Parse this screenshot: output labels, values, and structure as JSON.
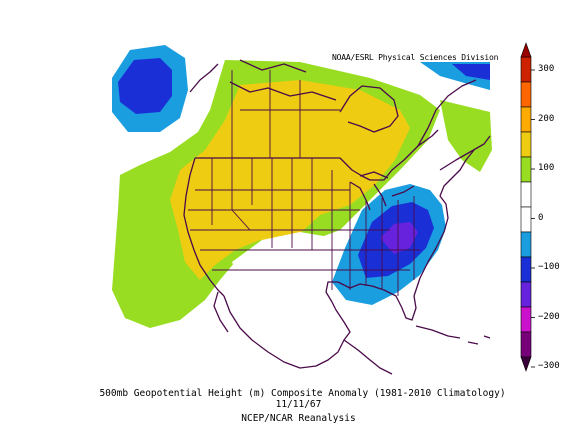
{
  "map": {
    "credit": "NOAA/ESRL Physical Sciences Division",
    "caption_line1": "500mb Geopotential Height (m) Composite Anomaly (1981-2010 Climatology)",
    "caption_line2": "11/11/67",
    "caption_line3": "NCEP/NCAR Reanalysis",
    "field_colors": {
      "pos_100_200": "#99dd22",
      "pos_200_300": "#eecc11",
      "pos_300_up": "#ffaa00",
      "neg_100_200": "#1a9ee0",
      "neg_200_300": "#1a30d6",
      "neg_300_down": "#6622dd"
    },
    "outline_color": "#4a0a4a"
  },
  "colorbar": {
    "ticks": [
      "300",
      "200",
      "100",
      "0",
      "−100",
      "−200",
      "−300"
    ],
    "colors": [
      "#cc2200",
      "#ff6600",
      "#ffaa00",
      "#eecc11",
      "#99dd22",
      "#ffffff",
      "#ffffff",
      "#1a9ee0",
      "#1a30d6",
      "#6622dd",
      "#cc11cc",
      "#77007a"
    ]
  }
}
